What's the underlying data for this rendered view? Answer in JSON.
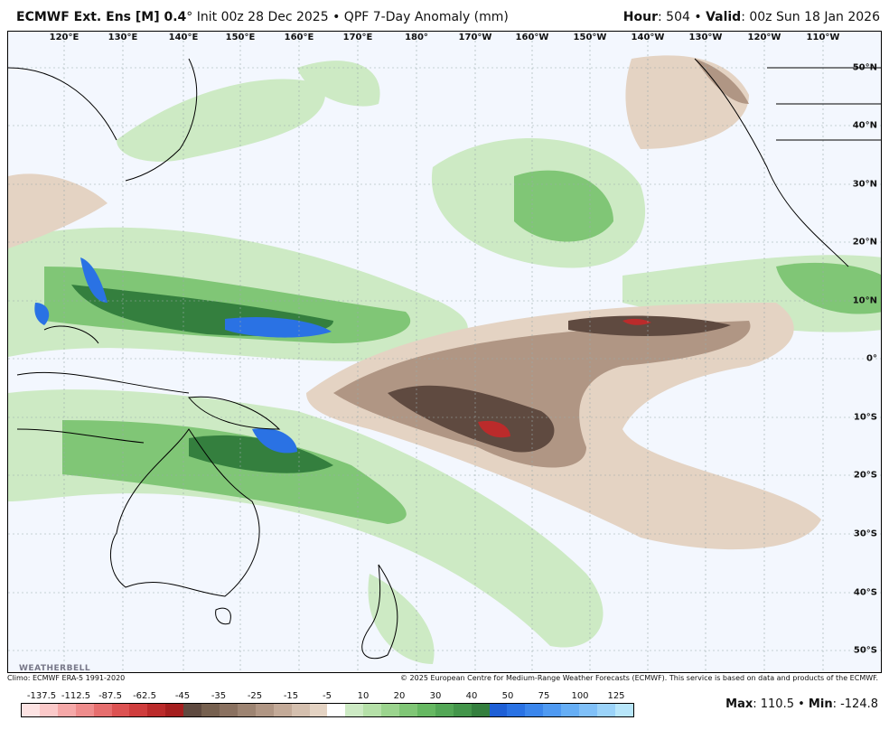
{
  "header": {
    "model": "ECMWF Ext. Ens [M] 0.4",
    "degree": "°",
    "init": "Init 00z 28 Dec 2025",
    "sep": "•",
    "product": "QPF 7-Day Anomaly (mm)",
    "hour_label": "Hour",
    "hour": ": 504",
    "valid_label": "Valid",
    "valid": ": 00z Sun 18 Jan 2026"
  },
  "map": {
    "lon_labels": [
      "120°E",
      "130°E",
      "140°E",
      "150°E",
      "160°E",
      "170°E",
      "180°",
      "170°W",
      "160°W",
      "150°W",
      "140°W",
      "130°W",
      "120°W",
      "110°W"
    ],
    "lat_labels": [
      "50°N",
      "40°N",
      "30°N",
      "20°N",
      "10°N",
      "0°",
      "10°S",
      "20°S",
      "30°S",
      "40°S",
      "50°S"
    ],
    "logo": "WEATHERBELL"
  },
  "footer": {
    "climo": "Climo: ECMWF ERA-5 1991-2020",
    "copyright": "© 2025 European Centre for Medium-Range Weather Forecasts (ECMWF). This service is based on data and products of the ECMWF."
  },
  "colorbar": {
    "labels": [
      "-137.5",
      "-112.5",
      "-87.5",
      "-62.5",
      "-45",
      "-35",
      "-25",
      "-15",
      "-5",
      "10",
      "20",
      "30",
      "40",
      "50",
      "75",
      "100",
      "125"
    ],
    "colors": [
      "#fde3e3",
      "#fbc9c9",
      "#f5a8a8",
      "#ee8c8c",
      "#e66e6e",
      "#dc5252",
      "#cf3d3d",
      "#bb2b2b",
      "#a51f1f",
      "#5f4a40",
      "#76604f",
      "#8a7160",
      "#9d8472",
      "#b09684",
      "#c3aa98",
      "#d4bfae",
      "#e4d3c3",
      "#ffffff",
      "#cdeac4",
      "#b5e0a8",
      "#9bd48e",
      "#80c676",
      "#66b862",
      "#53a756",
      "#43954a",
      "#347f3e",
      "#1e5fd6",
      "#2a72e4",
      "#3b86ec",
      "#4f9af2",
      "#66aef5",
      "#80c0f8",
      "#9bd3f9",
      "#b8e6fa"
    ]
  },
  "stats": {
    "max_label": "Max",
    "max": ": 110.5",
    "sep": " • ",
    "min_label": "Min",
    "min": ": -124.8"
  }
}
